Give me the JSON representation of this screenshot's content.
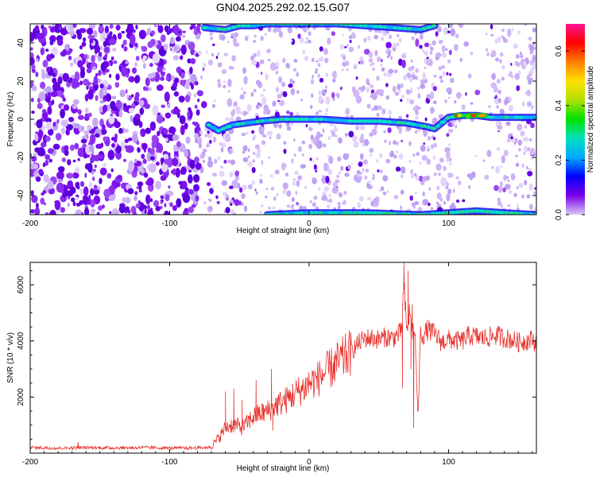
{
  "figure_title": "GN04.2025.292.02.15.G07",
  "chart_data": [
    {
      "type": "heatmap",
      "title": "GN04.2025.292.02.15.G07",
      "xlabel": "Height of straight line (km)",
      "ylabel": "Frequency (Hz)",
      "xlim": [
        -200,
        163
      ],
      "ylim": [
        -50,
        50
      ],
      "xticks": [
        -200,
        -100,
        0,
        100
      ],
      "yticks": [
        -40,
        -20,
        0,
        20,
        40
      ],
      "grid": false,
      "colorbar": {
        "label": "Normalized spectral amplitude",
        "range": [
          0,
          0.7
        ],
        "ticks": [
          0.0,
          0.2,
          0.4,
          0.6
        ],
        "tick_labels": [
          "0.0",
          "0.2",
          "0.4",
          "0.6"
        ],
        "colormap": [
          "#d9c8f5",
          "#7a00e8",
          "#0000ff",
          "#00aaff",
          "#00e0c0",
          "#00e000",
          "#b0e000",
          "#ffe000",
          "#ff8000",
          "#ff0000",
          "#ff1493"
        ]
      },
      "ridges": [
        {
          "name": "",
          "x": [
            -72,
            -65,
            -55,
            -45,
            -35,
            -20,
            -5,
            10,
            30,
            50,
            70,
            85,
            90,
            95,
            100,
            110,
            120,
            130,
            145,
            163
          ],
          "y": [
            -3,
            -6,
            -3,
            -2,
            -1,
            0,
            0,
            0,
            -1,
            -1,
            -2,
            -4,
            -5,
            -2,
            1,
            2,
            2,
            1,
            1,
            1
          ]
        },
        {
          "name": "",
          "x": [
            -75,
            -60,
            -50,
            -40,
            -30,
            0,
            20,
            40,
            60,
            80,
            90
          ],
          "y": [
            48,
            47,
            49,
            49,
            50,
            50,
            50,
            49,
            48,
            47,
            49
          ]
        },
        {
          "name": "",
          "x": [
            -30,
            0,
            40,
            80,
            100,
            120,
            140,
            163
          ],
          "y": [
            -50,
            -49,
            -49,
            -50,
            -49,
            -48,
            -49,
            -50
          ]
        }
      ],
      "blank_bands_x": [
        [
          108,
          115
        ],
        [
          118,
          130
        ]
      ]
    },
    {
      "type": "line",
      "xlabel": "Height of straight line (km)",
      "ylabel": "SNR (10 * v/v)",
      "xlim": [
        -200,
        163
      ],
      "ylim": [
        0,
        6800
      ],
      "xticks": [
        -200,
        -100,
        0,
        100
      ],
      "yticks": [
        2000,
        4000,
        6000
      ],
      "grid": false,
      "color": "#e8322d",
      "x": [
        -200,
        -180,
        -160,
        -140,
        -120,
        -100,
        -90,
        -80,
        -72,
        -68,
        -64,
        -60,
        -56,
        -52,
        -48,
        -44,
        -40,
        -36,
        -32,
        -28,
        -24,
        -20,
        -16,
        -12,
        -8,
        -4,
        0,
        5,
        10,
        15,
        20,
        25,
        30,
        35,
        40,
        45,
        50,
        55,
        60,
        63,
        66,
        68,
        70,
        72,
        74,
        76,
        78,
        80,
        82,
        85,
        90,
        95,
        100,
        105,
        110,
        115,
        120,
        125,
        130,
        135,
        140,
        145,
        150,
        155,
        160,
        163
      ],
      "y": [
        200,
        180,
        200,
        190,
        200,
        180,
        180,
        190,
        200,
        350,
        600,
        900,
        1000,
        1000,
        900,
        1100,
        1300,
        1400,
        1450,
        1550,
        1700,
        1800,
        1900,
        2050,
        2200,
        2300,
        2500,
        2600,
        2800,
        3000,
        3200,
        3400,
        3600,
        3900,
        4100,
        4100,
        4050,
        4150,
        4100,
        4200,
        4300,
        6000,
        4300,
        5000,
        4400,
        4300,
        1200,
        4300,
        4200,
        4400,
        4250,
        3950,
        4050,
        4000,
        4000,
        4200,
        4150,
        4100,
        4150,
        4200,
        4100,
        4050,
        3950,
        4000,
        4050,
        3900
      ],
      "spikes": [
        {
          "x": -60,
          "y": 2200
        },
        {
          "x": -54,
          "y": 2300
        },
        {
          "x": -48,
          "y": 1900
        },
        {
          "x": -38,
          "y": 2600
        },
        {
          "x": -27,
          "y": 3000
        },
        {
          "x": -26,
          "y": 800
        },
        {
          "x": 67,
          "y": 2300
        },
        {
          "x": 68,
          "y": 6800
        },
        {
          "x": 71,
          "y": 6500
        },
        {
          "x": 73,
          "y": 3000
        },
        {
          "x": 74,
          "y": 5300
        },
        {
          "x": 75,
          "y": 900
        }
      ]
    }
  ]
}
